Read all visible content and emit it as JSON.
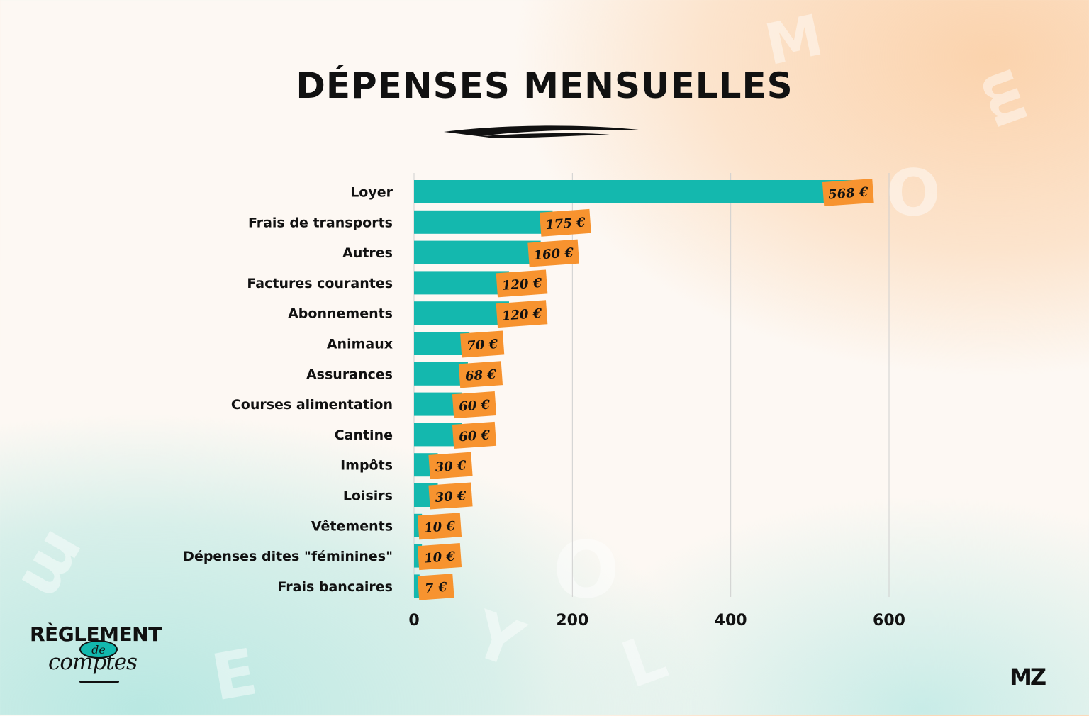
{
  "title": "DÉPENSES MENSUELLES",
  "colors": {
    "bar": "#14b8ae",
    "label_bg": "#f7932f",
    "text": "#111111",
    "grid": "#cfcfcf"
  },
  "chart_data": {
    "type": "bar",
    "orientation": "horizontal",
    "title": "DÉPENSES MENSUELLES",
    "categories": [
      "Loyer",
      "Frais de transports",
      "Autres",
      "Factures courantes",
      "Abonnements",
      "Animaux",
      "Assurances",
      "Courses alimentation",
      "Cantine",
      "Impôts",
      "Loisirs",
      "Vêtements",
      "Dépenses dites \"féminines\"",
      "Frais bancaires"
    ],
    "values": [
      568,
      175,
      160,
      120,
      120,
      70,
      68,
      60,
      60,
      30,
      30,
      10,
      10,
      7
    ],
    "value_labels": [
      "568 €",
      "175 €",
      "160 €",
      "120 €",
      "120 €",
      "70 €",
      "68 €",
      "60 €",
      "60 €",
      "30 €",
      "30 €",
      "10 €",
      "10 €",
      "7 €"
    ],
    "xticks": [
      0,
      200,
      400,
      600
    ],
    "xlim": [
      0,
      600
    ],
    "grid": true,
    "xlabel": "",
    "ylabel": ""
  },
  "logo": {
    "line1": "RÈGLEMENT",
    "line2": "de",
    "line3": "comptes"
  },
  "brand": "MZ"
}
